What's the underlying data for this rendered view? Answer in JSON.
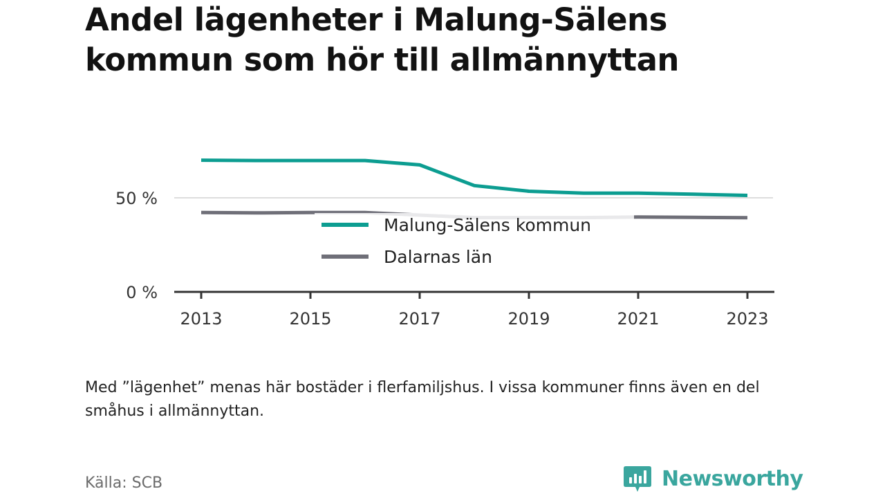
{
  "title": "Andel lägenheter i Malung-Sälens kommun som hör till allmännyttan",
  "note": "Med ”lägenhet” menas här bostäder i flerfamiljshus. I vissa kommuner finns även en del småhus i allmännyttan.",
  "source": "Källa: SCB",
  "brand": {
    "name": "Newsworthy",
    "icon": "newsworthy-logo-icon",
    "color": "#3aa69e"
  },
  "chart_data": {
    "type": "line",
    "x": [
      2013,
      2014,
      2015,
      2016,
      2017,
      2018,
      2019,
      2020,
      2021,
      2022,
      2023
    ],
    "x_ticks": [
      2013,
      2015,
      2017,
      2019,
      2021,
      2023
    ],
    "x_tick_labels": [
      "2013",
      "2015",
      "2017",
      "2019",
      "2021",
      "2023"
    ],
    "y_ticks": [
      0,
      50
    ],
    "y_tick_labels": [
      "0 %",
      "50 %"
    ],
    "ylim": [
      0,
      100
    ],
    "grid": true,
    "legend_position": "center",
    "series": [
      {
        "name": "Malung-Sälens kommun",
        "color": "#0c9d91",
        "values": [
          70,
          69.8,
          69.8,
          69.8,
          67.5,
          56.5,
          53.5,
          52.5,
          52.5,
          51.9,
          51.3
        ]
      },
      {
        "name": "Dalarnas län",
        "color": "#6f6f78",
        "values": [
          42.2,
          42,
          42.2,
          42.2,
          40.8,
          39.5,
          39.5,
          39.5,
          39.8,
          39.6,
          39.4
        ]
      }
    ]
  }
}
